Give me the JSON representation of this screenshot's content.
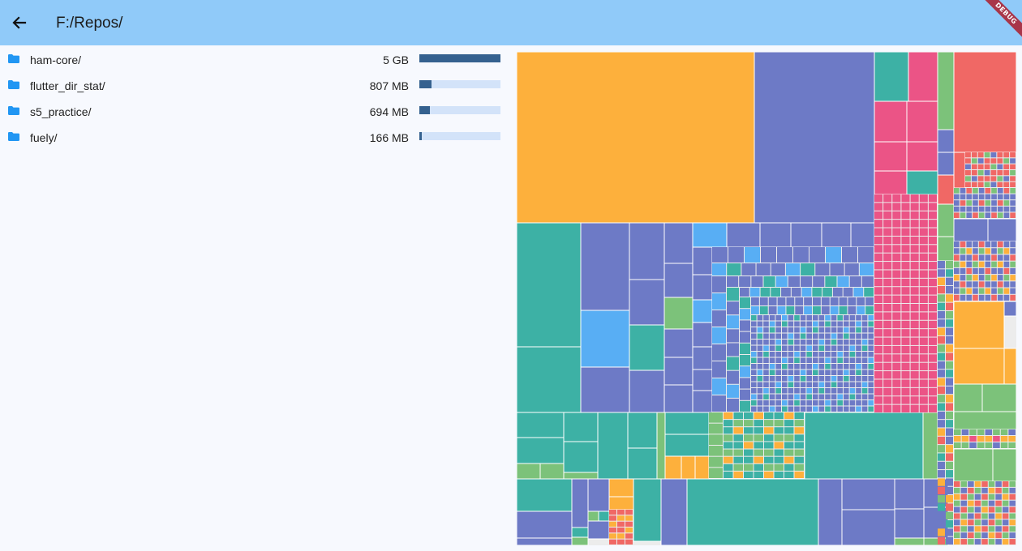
{
  "app_bar": {
    "title": "F:/Repos/",
    "back_icon": "arrow-left-icon",
    "debug_label": "DEBUG",
    "background": "#90caf9"
  },
  "folders": [
    {
      "name": "ham-core/",
      "size": "5 GB",
      "fraction": 1.0
    },
    {
      "name": "flutter_dir_stat/",
      "size": "807 MB",
      "fraction": 0.15
    },
    {
      "name": "s5_practice/",
      "size": "694 MB",
      "fraction": 0.13
    },
    {
      "name": "fuely/",
      "size": "166 MB",
      "fraction": 0.03
    }
  ],
  "colors": {
    "folder_icon": "#2196f3",
    "bar_fill": "#35618f",
    "bar_track": "#d3e3f9",
    "treemap_orange": "#fdb03c",
    "treemap_indigo": "#6d7ac6",
    "treemap_teal": "#3db1a5",
    "treemap_pink": "#eb5486",
    "treemap_green": "#7cc27a",
    "treemap_red": "#f06865",
    "treemap_blue": "#58aef4"
  }
}
